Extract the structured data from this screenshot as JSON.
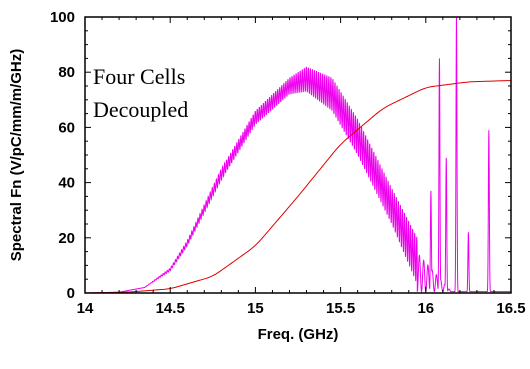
{
  "chart_data": {
    "type": "line",
    "title": "",
    "xlabel": "Freq. (GHz)",
    "ylabel": "Spectral Fn (V/pC/mm/m/GHz)",
    "xlim": [
      14,
      16.5
    ],
    "ylim": [
      0,
      100
    ],
    "x_ticks": [
      "14",
      "14.5",
      "15",
      "15.5",
      "16",
      "16.5"
    ],
    "y_ticks": [
      "0",
      "20",
      "40",
      "60",
      "80",
      "100"
    ],
    "grid": false,
    "annotation": [
      "Four Cells",
      "Decoupled"
    ],
    "series": [
      {
        "color": "#ee00ee",
        "style": "spectral-oscillating",
        "envelope_x": [
          14.0,
          14.2,
          14.35,
          14.5,
          14.6,
          14.8,
          15.0,
          15.2,
          15.3,
          15.45,
          15.6,
          15.8,
          15.95
        ],
        "envelope_upper": [
          0,
          0.3,
          2,
          9,
          19,
          45,
          66,
          78,
          82,
          78,
          63,
          38,
          20
        ],
        "envelope_lower": [
          0,
          0.3,
          2,
          8,
          17,
          41,
          61,
          72,
          73,
          66,
          50,
          25,
          3
        ],
        "peaks_x": [
          16.03,
          16.08,
          16.12,
          16.18,
          16.25,
          16.37
        ],
        "peaks_y": [
          37,
          85,
          49,
          100,
          22,
          59
        ]
      },
      {
        "color": "#dd0000",
        "style": "smooth",
        "x": [
          14.0,
          14.25,
          14.5,
          14.75,
          15.0,
          15.25,
          15.5,
          15.75,
          16.0,
          16.25,
          16.5
        ],
        "y": [
          0,
          0.3,
          1.5,
          6,
          17,
          35,
          54,
          67,
          74.5,
          76.5,
          77
        ]
      }
    ]
  }
}
